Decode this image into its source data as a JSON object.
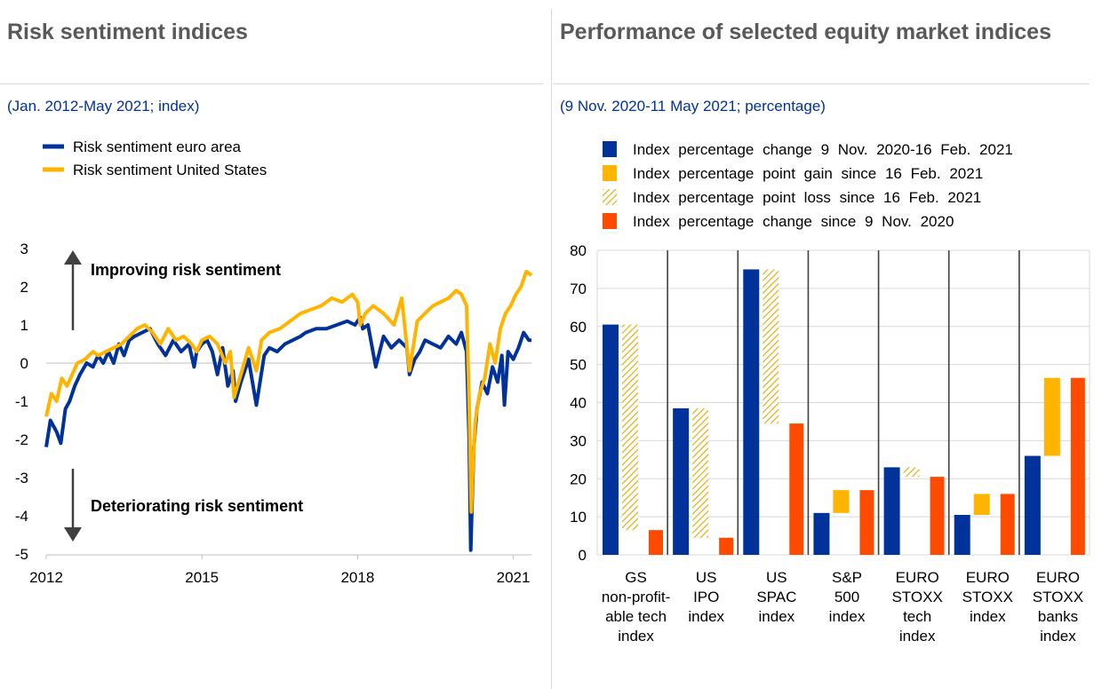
{
  "left": {
    "title": "Risk sentiment indices",
    "subtitle": "(Jan. 2012-May 2021; index)",
    "annotation_up": "Improving risk sentiment",
    "annotation_down": "Deteriorating risk sentiment"
  },
  "right": {
    "title": "Performance of selected equity market indices",
    "subtitle": "(9 Nov. 2020-11 May 2021; percentage)"
  },
  "colors": {
    "euro_area": "#003299",
    "united_states": "#ffb400",
    "change_since_nov": "#ff4b00",
    "title_gray": "#595959",
    "subtitle_blue": "#003299"
  },
  "chart_data": [
    {
      "type": "line",
      "title": "Risk sentiment indices",
      "x_range": [
        2012.0,
        2021.35
      ],
      "ylim": [
        -5,
        3
      ],
      "y_ticks": [
        3,
        2,
        1,
        0,
        -1,
        -2,
        -3,
        -4,
        -5
      ],
      "x_ticks": [
        "2012",
        "2015",
        "2018",
        "2021"
      ],
      "x_tick_values": [
        2012,
        2015,
        2018,
        2021
      ],
      "legend_position": "top-left",
      "grid": false,
      "series": [
        {
          "name": "Risk sentiment euro area",
          "x": [
            2012.0,
            2012.08,
            2012.2,
            2012.28,
            2012.37,
            2012.45,
            2012.55,
            2012.65,
            2012.78,
            2012.9,
            2013.0,
            2013.1,
            2013.2,
            2013.3,
            2013.4,
            2013.5,
            2013.6,
            2013.7,
            2013.85,
            2014.0,
            2014.15,
            2014.3,
            2014.45,
            2014.6,
            2014.75,
            2014.85,
            2014.9,
            2015.0,
            2015.1,
            2015.2,
            2015.3,
            2015.4,
            2015.5,
            2015.6,
            2015.65,
            2015.75,
            2015.9,
            2016.05,
            2016.2,
            2016.3,
            2016.45,
            2016.6,
            2016.75,
            2016.9,
            2017.0,
            2017.2,
            2017.4,
            2017.6,
            2017.8,
            2017.95,
            2018.05,
            2018.1,
            2018.2,
            2018.35,
            2018.5,
            2018.65,
            2018.8,
            2018.95,
            2019.0,
            2019.1,
            2019.2,
            2019.3,
            2019.45,
            2019.6,
            2019.75,
            2019.9,
            2020.0,
            2020.1,
            2020.15,
            2020.18,
            2020.21,
            2020.24,
            2020.3,
            2020.4,
            2020.5,
            2020.6,
            2020.7,
            2020.78,
            2020.83,
            2020.9,
            2021.0,
            2021.1,
            2021.2,
            2021.3,
            2021.35
          ],
          "y": [
            -2.2,
            -1.5,
            -1.8,
            -2.1,
            -1.2,
            -1.0,
            -0.6,
            -0.3,
            0.0,
            -0.1,
            0.2,
            0.0,
            0.3,
            0.0,
            0.5,
            0.2,
            0.6,
            0.7,
            0.8,
            0.9,
            0.5,
            0.2,
            0.6,
            0.3,
            0.5,
            -0.1,
            0.3,
            0.5,
            0.6,
            0.3,
            -0.3,
            0.4,
            -0.6,
            -0.2,
            -1.0,
            -0.5,
            0.1,
            -1.1,
            0.2,
            0.4,
            0.3,
            0.5,
            0.6,
            0.7,
            0.8,
            0.9,
            0.9,
            1.0,
            1.1,
            1.0,
            1.2,
            0.9,
            1.0,
            -0.1,
            0.7,
            0.4,
            0.6,
            0.4,
            -0.3,
            0.1,
            0.3,
            0.6,
            0.5,
            0.4,
            0.7,
            0.5,
            0.8,
            0.3,
            -2.0,
            -4.9,
            -3.5,
            -2.2,
            -1.2,
            -0.5,
            -0.8,
            -0.1,
            -0.5,
            0.2,
            -1.1,
            0.3,
            0.1,
            0.4,
            0.8,
            0.6,
            0.6
          ]
        },
        {
          "name": "Risk sentiment United States",
          "x": [
            2012.0,
            2012.1,
            2012.2,
            2012.3,
            2012.4,
            2012.5,
            2012.6,
            2012.75,
            2012.9,
            2013.0,
            2013.15,
            2013.3,
            2013.45,
            2013.6,
            2013.75,
            2013.9,
            2014.05,
            2014.2,
            2014.35,
            2014.5,
            2014.65,
            2014.8,
            2014.9,
            2015.0,
            2015.15,
            2015.3,
            2015.45,
            2015.55,
            2015.62,
            2015.75,
            2015.9,
            2016.05,
            2016.15,
            2016.3,
            2016.5,
            2016.7,
            2016.9,
            2017.1,
            2017.3,
            2017.5,
            2017.7,
            2017.9,
            2018.0,
            2018.05,
            2018.15,
            2018.3,
            2018.5,
            2018.7,
            2018.85,
            2019.0,
            2019.15,
            2019.3,
            2019.45,
            2019.6,
            2019.75,
            2019.9,
            2020.0,
            2020.1,
            2020.15,
            2020.19,
            2020.22,
            2020.27,
            2020.35,
            2020.45,
            2020.55,
            2020.65,
            2020.75,
            2020.85,
            2020.95,
            2021.05,
            2021.15,
            2021.25,
            2021.35
          ],
          "y": [
            -1.4,
            -0.8,
            -1.0,
            -0.4,
            -0.6,
            -0.3,
            0.0,
            0.1,
            0.3,
            0.2,
            0.3,
            0.4,
            0.5,
            0.7,
            0.9,
            1.0,
            0.8,
            0.5,
            0.9,
            0.6,
            0.7,
            0.5,
            0.3,
            0.6,
            0.7,
            0.5,
            0.0,
            0.3,
            -0.9,
            -0.3,
            0.4,
            -0.2,
            0.6,
            0.8,
            0.9,
            1.1,
            1.3,
            1.4,
            1.5,
            1.7,
            1.6,
            1.8,
            1.6,
            1.0,
            1.3,
            1.5,
            1.3,
            1.0,
            1.7,
            -0.2,
            1.1,
            1.3,
            1.5,
            1.6,
            1.7,
            1.9,
            1.8,
            1.5,
            -1.0,
            -3.9,
            -2.8,
            -1.5,
            -0.8,
            -0.4,
            0.5,
            0.0,
            0.9,
            1.3,
            1.5,
            1.8,
            2.0,
            2.4,
            2.3
          ]
        }
      ]
    },
    {
      "type": "bar",
      "title": "Performance of selected equity market indices",
      "ylim": [
        0,
        80
      ],
      "y_ticks": [
        80,
        70,
        60,
        50,
        40,
        30,
        20,
        10,
        0
      ],
      "legend_position": "top",
      "categories": [
        "GS non-profit-able tech index",
        "US IPO index",
        "US SPAC index",
        "S&P 500 index",
        "EURO STOXX tech index",
        "EURO STOXX index",
        "EURO STOXX banks index"
      ],
      "category_label_lines": [
        [
          "GS",
          "non-profit-",
          "able tech",
          "index"
        ],
        [
          "US",
          "IPO",
          "index"
        ],
        [
          "US",
          "SPAC",
          "index"
        ],
        [
          "S&P",
          "500",
          "index"
        ],
        [
          "EURO",
          "STOXX",
          "tech",
          "index"
        ],
        [
          "EURO",
          "STOXX",
          "index"
        ],
        [
          "EURO",
          "STOXX",
          "banks",
          "index"
        ]
      ],
      "series": [
        {
          "name": "Index percentage change 9 Nov. 2020-16 Feb. 2021",
          "values": [
            60.5,
            38.5,
            75,
            11,
            23,
            10.5,
            26
          ]
        },
        {
          "name": "Index percentage point gain since 16 Feb. 2021",
          "base": [
            null,
            null,
            null,
            11,
            null,
            10.5,
            26
          ],
          "values": [
            null,
            null,
            null,
            17,
            null,
            16,
            46.5
          ]
        },
        {
          "name": "Index percentage point loss since 16 Feb. 2021",
          "base": [
            6.5,
            4.5,
            34.5,
            null,
            20.5,
            null,
            null
          ],
          "values": [
            60.5,
            38.5,
            75,
            null,
            23,
            null,
            null
          ]
        },
        {
          "name": "Index percentage change since 9 Nov. 2020",
          "values": [
            6.5,
            4.5,
            34.5,
            17,
            20.5,
            16,
            46.5
          ]
        }
      ]
    }
  ]
}
